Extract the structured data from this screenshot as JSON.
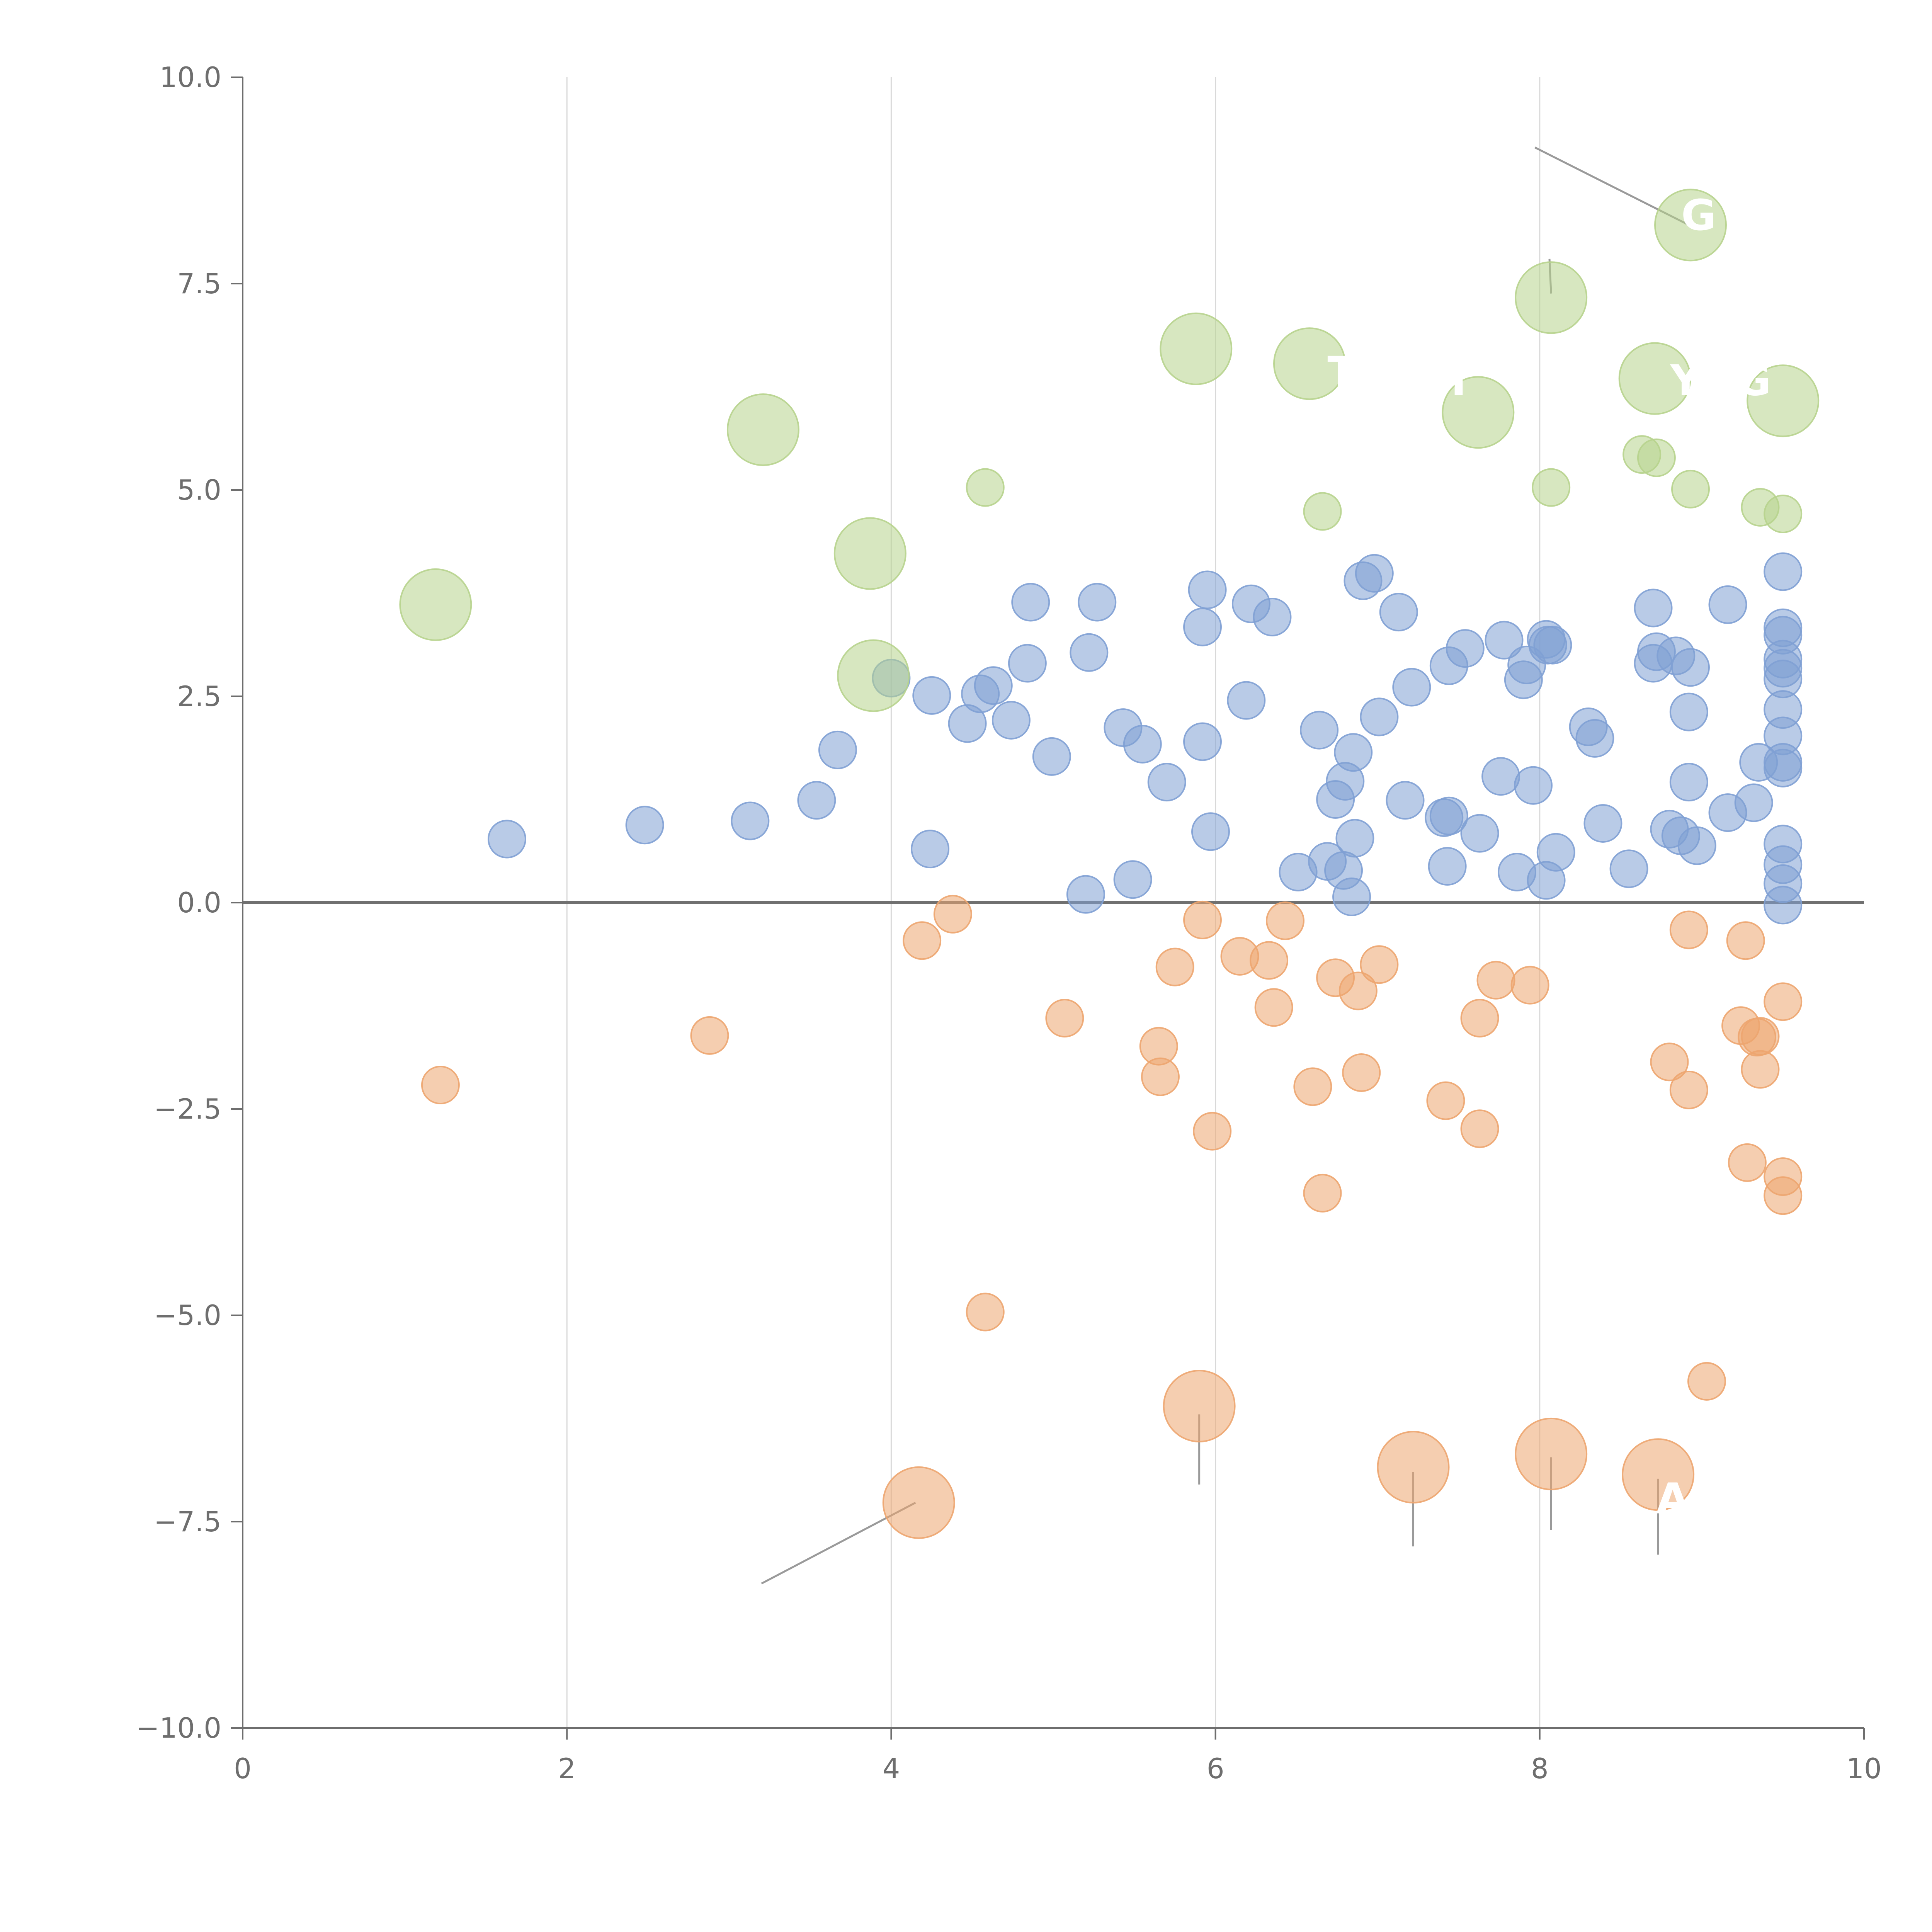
{
  "chart_data": {
    "type": "scatter",
    "title": "",
    "xlabel": "",
    "ylabel": "",
    "xlim": [
      0,
      10
    ],
    "ylim": [
      -10,
      10
    ],
    "grid": "vertical",
    "x_ticks": [
      0,
      2,
      4,
      6,
      8,
      10
    ],
    "y_ticks": [
      -10,
      -7.5,
      -5,
      -2.5,
      0,
      2.5,
      5,
      7.5,
      10
    ],
    "x_tick_labels": [
      "0",
      "2",
      "4",
      "6",
      "8",
      "10"
    ],
    "y_tick_labels": [
      "−10.0",
      "−7.5",
      "−5.0",
      "−2.5",
      "0.0",
      "2.5",
      "5.0",
      "7.5",
      "10.0"
    ],
    "reference_line_y": 0,
    "colors": {
      "blue": "#7fa0d4",
      "orange": "#eda56f",
      "green": "#b7d38d",
      "axis": "#6e6e6e",
      "grid": "#d9d9d9",
      "zero_line": "#707070",
      "leader": "#9a9a9a"
    },
    "series": [
      {
        "name": "blue",
        "color": "#7fa0d4",
        "size": 1,
        "points": [
          [
            1.63,
            0.77
          ],
          [
            2.48,
            0.94
          ],
          [
            3.13,
            0.99
          ],
          [
            3.54,
            1.24
          ],
          [
            3.67,
            1.85
          ],
          [
            4.0,
            2.72
          ],
          [
            4.24,
            0.65
          ],
          [
            4.25,
            2.51
          ],
          [
            4.47,
            2.17
          ],
          [
            4.55,
            2.53
          ],
          [
            4.63,
            2.63
          ],
          [
            4.74,
            2.21
          ],
          [
            4.84,
            2.9
          ],
          [
            4.86,
            3.64
          ],
          [
            4.99,
            1.77
          ],
          [
            5.2,
            0.1
          ],
          [
            5.22,
            3.03
          ],
          [
            5.27,
            3.64
          ],
          [
            5.43,
            2.12
          ],
          [
            5.49,
            0.28
          ],
          [
            5.55,
            1.92
          ],
          [
            5.7,
            1.46
          ],
          [
            5.92,
            3.34
          ],
          [
            5.92,
            1.95
          ],
          [
            5.95,
            3.79
          ],
          [
            5.97,
            0.86
          ],
          [
            6.19,
            2.45
          ],
          [
            6.22,
            3.62
          ],
          [
            6.35,
            3.46
          ],
          [
            6.51,
            0.37
          ],
          [
            6.64,
            2.09
          ],
          [
            6.69,
            0.5
          ],
          [
            6.74,
            1.25
          ],
          [
            6.79,
            0.39
          ],
          [
            6.8,
            1.47
          ],
          [
            6.84,
            0.07
          ],
          [
            6.85,
            1.82
          ],
          [
            6.86,
            0.78
          ],
          [
            6.91,
            3.9
          ],
          [
            6.98,
            3.99
          ],
          [
            7.01,
            2.25
          ],
          [
            7.13,
            3.52
          ],
          [
            7.17,
            1.24
          ],
          [
            7.21,
            2.61
          ],
          [
            7.41,
            1.03
          ],
          [
            7.43,
            0.44
          ],
          [
            7.44,
            1.05
          ],
          [
            7.44,
            2.87
          ],
          [
            7.54,
            3.08
          ],
          [
            7.63,
            0.84
          ],
          [
            7.76,
            1.53
          ],
          [
            7.78,
            3.18
          ],
          [
            7.86,
            0.37
          ],
          [
            7.9,
            2.7
          ],
          [
            7.92,
            2.88
          ],
          [
            7.96,
            1.42
          ],
          [
            8.04,
            0.27
          ],
          [
            8.04,
            3.19
          ],
          [
            8.05,
            3.12
          ],
          [
            8.08,
            3.12
          ],
          [
            8.1,
            0.61
          ],
          [
            8.3,
            2.13
          ],
          [
            8.34,
            1.99
          ],
          [
            8.39,
            0.96
          ],
          [
            8.55,
            0.41
          ],
          [
            8.7,
            2.9
          ],
          [
            8.7,
            3.57
          ],
          [
            8.72,
            3.04
          ],
          [
            8.8,
            0.89
          ],
          [
            8.84,
            2.99
          ],
          [
            8.87,
            0.81
          ],
          [
            8.92,
            1.46
          ],
          [
            8.92,
            2.31
          ],
          [
            8.93,
            2.85
          ],
          [
            8.97,
            0.69
          ],
          [
            9.16,
            3.61
          ],
          [
            9.16,
            1.09
          ],
          [
            9.32,
            1.21
          ],
          [
            9.35,
            1.7
          ],
          [
            9.5,
            4.01
          ],
          [
            9.5,
            3.33
          ],
          [
            9.5,
            3.24
          ],
          [
            9.5,
            2.95
          ],
          [
            9.5,
            2.84
          ],
          [
            9.5,
            2.71
          ],
          [
            9.5,
            2.34
          ],
          [
            9.5,
            2.02
          ],
          [
            9.5,
            1.7
          ],
          [
            9.5,
            1.63
          ],
          [
            9.5,
            0.71
          ],
          [
            9.5,
            0.46
          ],
          [
            9.5,
            0.23
          ],
          [
            9.5,
            -0.03
          ]
        ]
      },
      {
        "name": "orange",
        "color": "#eda56f",
        "size": 1,
        "points": [
          [
            1.22,
            -2.21
          ],
          [
            2.88,
            -1.61
          ],
          [
            4.19,
            -0.46
          ],
          [
            4.38,
            -0.14
          ],
          [
            4.58,
            -4.96
          ],
          [
            5.07,
            -1.4
          ],
          [
            5.65,
            -1.74
          ],
          [
            5.66,
            -2.11
          ],
          [
            5.75,
            -0.78
          ],
          [
            5.92,
            -0.21
          ],
          [
            5.98,
            -2.77
          ],
          [
            6.15,
            -0.65
          ],
          [
            6.33,
            -0.7
          ],
          [
            6.36,
            -1.27
          ],
          [
            6.43,
            -0.22
          ],
          [
            6.6,
            -2.23
          ],
          [
            6.66,
            -3.52
          ],
          [
            6.74,
            -0.91
          ],
          [
            6.88,
            -1.07
          ],
          [
            6.9,
            -2.06
          ],
          [
            7.01,
            -0.75
          ],
          [
            7.42,
            -2.4
          ],
          [
            7.63,
            -1.4
          ],
          [
            7.63,
            -2.74
          ],
          [
            7.73,
            -0.94
          ],
          [
            7.94,
            -1.0
          ],
          [
            8.8,
            -1.93
          ],
          [
            8.92,
            -0.33
          ],
          [
            8.92,
            -2.27
          ],
          [
            9.03,
            -5.8
          ],
          [
            9.24,
            -1.49
          ],
          [
            9.27,
            -0.46
          ],
          [
            9.28,
            -3.15
          ],
          [
            9.34,
            -1.63
          ],
          [
            9.36,
            -1.62
          ],
          [
            9.36,
            -2.02
          ],
          [
            9.5,
            -1.2
          ],
          [
            9.5,
            -3.32
          ],
          [
            9.5,
            -3.55
          ]
        ]
      },
      {
        "name": "orange-large",
        "color": "#eda56f",
        "size": 2,
        "points": [
          [
            4.17,
            -7.27
          ],
          [
            5.9,
            -6.1
          ],
          [
            7.22,
            -6.84
          ],
          [
            8.07,
            -6.68
          ],
          [
            8.73,
            -6.93
          ]
        ]
      },
      {
        "name": "green",
        "color": "#b7d38d",
        "size": 1,
        "points": [
          [
            4.58,
            5.03
          ],
          [
            6.66,
            4.74
          ],
          [
            8.07,
            5.03
          ],
          [
            8.63,
            5.43
          ],
          [
            8.72,
            5.39
          ],
          [
            8.93,
            5.01
          ],
          [
            9.36,
            4.79
          ],
          [
            9.5,
            4.71
          ]
        ]
      },
      {
        "name": "green-large",
        "color": "#b7d38d",
        "size": 2,
        "points": [
          [
            1.19,
            3.61
          ],
          [
            3.21,
            5.73
          ],
          [
            3.87,
            4.23
          ],
          [
            3.89,
            2.75
          ],
          [
            5.88,
            6.71
          ],
          [
            6.58,
            6.53
          ],
          [
            7.62,
            5.94
          ],
          [
            8.07,
            7.33
          ],
          [
            8.71,
            6.35
          ],
          [
            8.93,
            8.21
          ],
          [
            9.5,
            6.08
          ]
        ]
      }
    ],
    "leader_lines": [
      [
        [
          4.15,
          -7.27
        ],
        [
          3.2,
          -8.25
        ]
      ],
      [
        [
          5.9,
          -6.2
        ],
        [
          5.9,
          -7.05
        ]
      ],
      [
        [
          7.22,
          -6.9
        ],
        [
          7.22,
          -7.8
        ]
      ],
      [
        [
          8.07,
          -6.72
        ],
        [
          8.07,
          -7.6
        ]
      ],
      [
        [
          8.73,
          -6.98
        ],
        [
          8.73,
          -7.9
        ]
      ],
      [
        [
          8.92,
          8.21
        ],
        [
          7.97,
          9.15
        ]
      ],
      [
        [
          8.07,
          7.38
        ],
        [
          8.06,
          7.8
        ]
      ]
    ],
    "point_labels": [
      {
        "x": 8.98,
        "y": 8.15,
        "text": "G"
      },
      {
        "x": 6.78,
        "y": 6.25,
        "text": "T"
      },
      {
        "x": 7.5,
        "y": 6.15,
        "text": "T"
      },
      {
        "x": 8.9,
        "y": 6.15,
        "text": "Y"
      },
      {
        "x": 9.32,
        "y": 6.15,
        "text": "G"
      },
      {
        "x": 8.82,
        "y": -7.4,
        "text": "A"
      }
    ]
  }
}
